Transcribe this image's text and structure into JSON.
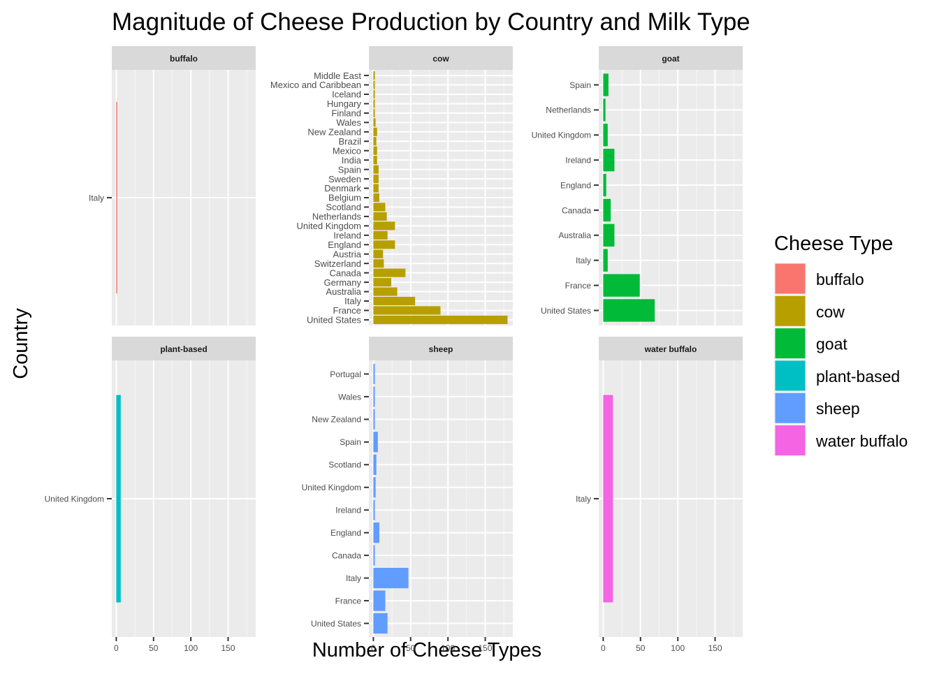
{
  "chart_data": {
    "type": "bar",
    "orientation": "horizontal",
    "title": "Magnitude of Cheese Production by Country and Milk Type",
    "xlabel": "Number of Cheese Types",
    "ylabel": "Country",
    "xlim": [
      -6,
      187
    ],
    "xticks": [
      0,
      50,
      100,
      150
    ],
    "grid": true,
    "facets_scales": "free_y",
    "legend": {
      "title": "Cheese Type",
      "placement": "right",
      "entries": [
        {
          "label": "buffalo",
          "color": "#F8766D"
        },
        {
          "label": "cow",
          "color": "#B79F00"
        },
        {
          "label": "goat",
          "color": "#00BA38"
        },
        {
          "label": "plant-based",
          "color": "#00BFC4"
        },
        {
          "label": "sheep",
          "color": "#619CFF"
        },
        {
          "label": "water buffalo",
          "color": "#F564E3"
        }
      ]
    },
    "facets": [
      {
        "name": "buffalo",
        "color": "#F8766D",
        "categories": [
          "Italy"
        ],
        "values": [
          1
        ]
      },
      {
        "name": "cow",
        "color": "#B79F00",
        "categories": [
          "United States",
          "France",
          "Italy",
          "Australia",
          "Germany",
          "Canada",
          "Switzerland",
          "Austria",
          "England",
          "Ireland",
          "United Kingdom",
          "Netherlands",
          "Scotland",
          "Belgium",
          "Denmark",
          "Sweden",
          "Spain",
          "India",
          "Mexico",
          "Brazil",
          "New Zealand",
          "Wales",
          "Finland",
          "Hungary",
          "Iceland",
          "Mexico and Caribbean",
          "Middle East"
        ],
        "values": [
          180,
          90,
          56,
          32,
          24,
          43,
          14,
          13,
          29,
          19,
          29,
          18,
          16,
          8,
          7,
          7,
          7,
          5,
          5,
          4,
          5,
          3,
          2,
          2,
          2,
          2,
          2
        ]
      },
      {
        "name": "goat",
        "color": "#00BA38",
        "categories": [
          "United States",
          "France",
          "Italy",
          "Australia",
          "Canada",
          "England",
          "Ireland",
          "United Kingdom",
          "Netherlands",
          "Spain"
        ],
        "values": [
          69,
          49,
          6,
          15,
          10,
          4,
          15,
          6,
          3,
          7
        ]
      },
      {
        "name": "plant-based",
        "color": "#00BFC4",
        "categories": [
          "United Kingdom"
        ],
        "values": [
          6
        ]
      },
      {
        "name": "sheep",
        "color": "#619CFF",
        "categories": [
          "United States",
          "France",
          "Italy",
          "Canada",
          "England",
          "Ireland",
          "United Kingdom",
          "Scotland",
          "Spain",
          "New Zealand",
          "Wales",
          "Portugal"
        ],
        "values": [
          19,
          16,
          47,
          2,
          8,
          2,
          3,
          4,
          6,
          2,
          2,
          2
        ]
      },
      {
        "name": "water buffalo",
        "color": "#F564E3",
        "categories": [
          "Italy"
        ],
        "values": [
          13
        ]
      }
    ]
  }
}
